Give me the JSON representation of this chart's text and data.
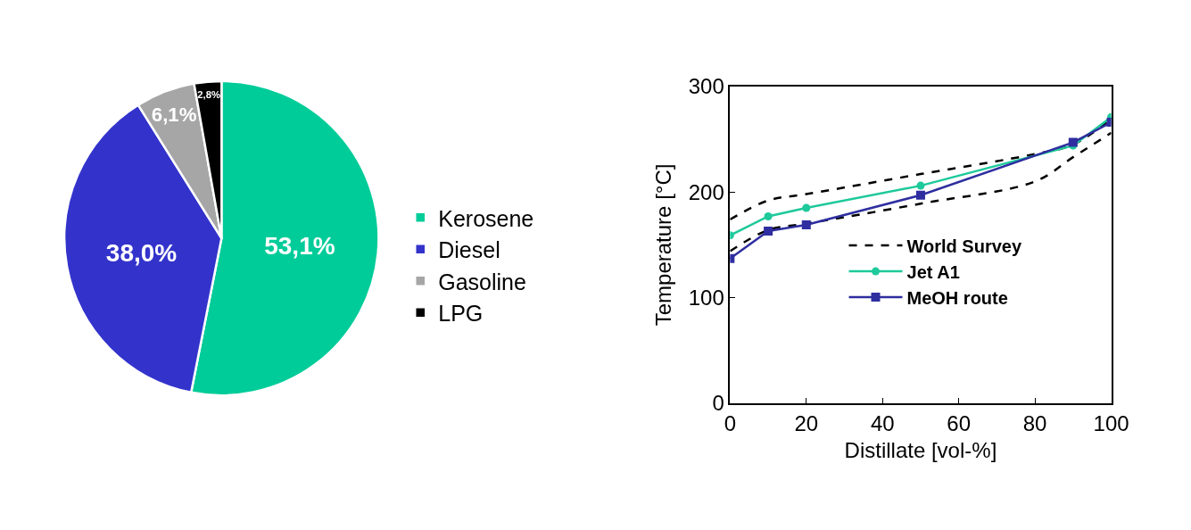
{
  "chart_data": [
    {
      "type": "pie",
      "categories": [
        "Kerosene",
        "Diesel",
        "Gasoline",
        "LPG"
      ],
      "values": [
        53.1,
        38.0,
        6.1,
        2.8
      ],
      "value_labels": [
        "53,1%",
        "38,0%",
        "6,1%",
        "2,8%"
      ],
      "colors": [
        "#00cc99",
        "#3333cc",
        "#a6a6a6",
        "#000000"
      ],
      "legend": "right"
    },
    {
      "type": "line",
      "xlabel": "Distillate [vol-%]",
      "ylabel": "Temperature [°C]",
      "xlim": [
        0,
        100
      ],
      "xticks": [
        0,
        20,
        40,
        60,
        80,
        100
      ],
      "ylim": [
        0,
        300
      ],
      "yticks": [
        0,
        100,
        200,
        300
      ],
      "legend": "bottom right",
      "series": [
        {
          "name": "World Survey",
          "color": "#000000",
          "line_style": "dashed",
          "marker": "none",
          "x": [
            0,
            10,
            20,
            50,
            80,
            90,
            100
          ],
          "values": [
            174,
            192,
            198,
            217,
            236,
            245,
            269
          ]
        },
        {
          "color": "#000000",
          "line_style": "dashed",
          "marker": "none",
          "x": [
            0,
            10,
            20,
            50,
            80,
            90,
            100
          ],
          "values": [
            144,
            164,
            170,
            189,
            210,
            233,
            256
          ]
        },
        {
          "name": "Jet A1",
          "color": "#1ec99b",
          "line_style": "solid",
          "marker": "circle",
          "x": [
            0,
            10,
            20,
            50,
            90,
            100
          ],
          "values": [
            159,
            177,
            185,
            206,
            244,
            271
          ]
        },
        {
          "name": "MeOH route",
          "color": "#2e2ea0",
          "line_style": "solid",
          "marker": "square",
          "x": [
            0,
            10,
            20,
            50,
            90,
            100
          ],
          "values": [
            137,
            163,
            169,
            197,
            247,
            266
          ]
        }
      ]
    }
  ]
}
